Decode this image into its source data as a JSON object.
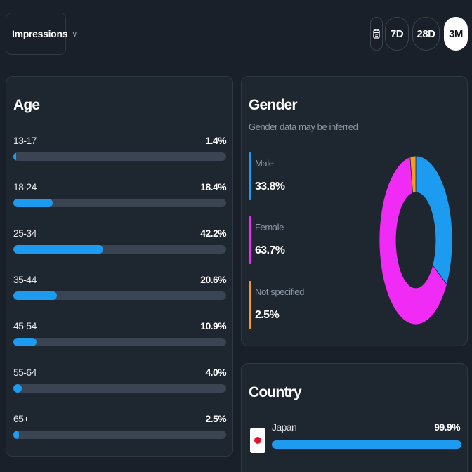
{
  "header": {
    "metric_selector": {
      "label": "Impressions",
      "chevron": "∨"
    },
    "date_ranges": [
      {
        "label": "7D",
        "selected": false
      },
      {
        "label": "28D",
        "selected": false
      },
      {
        "label": "3M",
        "selected": true
      }
    ],
    "calendar_icon": "calendar-icon"
  },
  "age": {
    "title": "Age",
    "rows": [
      {
        "label": "13-17",
        "value_text": "1.4%",
        "value": 1.4
      },
      {
        "label": "18-24",
        "value_text": "18.4%",
        "value": 18.4
      },
      {
        "label": "25-34",
        "value_text": "42.2%",
        "value": 42.2
      },
      {
        "label": "35-44",
        "value_text": "20.6%",
        "value": 20.6
      },
      {
        "label": "45-54",
        "value_text": "10.9%",
        "value": 10.9
      },
      {
        "label": "55-64",
        "value_text": "4.0%",
        "value": 4.0
      },
      {
        "label": "65+",
        "value_text": "2.5%",
        "value": 2.5
      }
    ]
  },
  "gender": {
    "title": "Gender",
    "subtitle": "Gender data may be inferred",
    "items": [
      {
        "label": "Male",
        "value_text": "33.8%",
        "value": 33.8,
        "color": "#1d9bf0"
      },
      {
        "label": "Female",
        "value_text": "63.7%",
        "value": 63.7,
        "color": "#f02bf5"
      },
      {
        "label": "Not specified",
        "value_text": "2.5%",
        "value": 2.5,
        "color": "#f59a23"
      }
    ]
  },
  "country": {
    "title": "Country",
    "items": [
      {
        "label": "Japan",
        "value_text": "99.9%",
        "value": 99.9,
        "flag": "japan-flag-icon"
      }
    ]
  },
  "colors": {
    "accent": "#1d9bf0",
    "track": "#3a4452",
    "background": "#19202a",
    "card": "#1e2630"
  }
}
